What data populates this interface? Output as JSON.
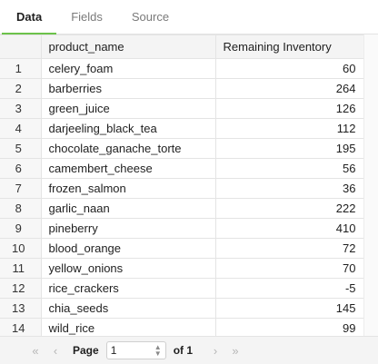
{
  "tabs": [
    {
      "label": "Data"
    },
    {
      "label": "Fields"
    },
    {
      "label": "Source"
    }
  ],
  "table": {
    "columns": [
      "",
      "product_name",
      "Remaining Inventory"
    ],
    "rows": [
      {
        "idx": "1",
        "name": "celery_foam",
        "value": "60"
      },
      {
        "idx": "2",
        "name": "barberries",
        "value": "264"
      },
      {
        "idx": "3",
        "name": "green_juice",
        "value": "126"
      },
      {
        "idx": "4",
        "name": "darjeeling_black_tea",
        "value": "112"
      },
      {
        "idx": "5",
        "name": "chocolate_ganache_torte",
        "value": "195"
      },
      {
        "idx": "6",
        "name": "camembert_cheese",
        "value": "56"
      },
      {
        "idx": "7",
        "name": "frozen_salmon",
        "value": "36"
      },
      {
        "idx": "8",
        "name": "garlic_naan",
        "value": "222"
      },
      {
        "idx": "9",
        "name": "pineberry",
        "value": "410"
      },
      {
        "idx": "10",
        "name": "blood_orange",
        "value": "72"
      },
      {
        "idx": "11",
        "name": "yellow_onions",
        "value": "70"
      },
      {
        "idx": "12",
        "name": "rice_crackers",
        "value": "-5"
      },
      {
        "idx": "13",
        "name": "chia_seeds",
        "value": "145"
      },
      {
        "idx": "14",
        "name": "wild_rice",
        "value": "99"
      }
    ]
  },
  "pager": {
    "first_icon": "«",
    "prev_icon": "‹",
    "next_icon": "›",
    "last_icon": "»",
    "page_label": "Page",
    "page_value": "1",
    "of_label": "of 1"
  }
}
